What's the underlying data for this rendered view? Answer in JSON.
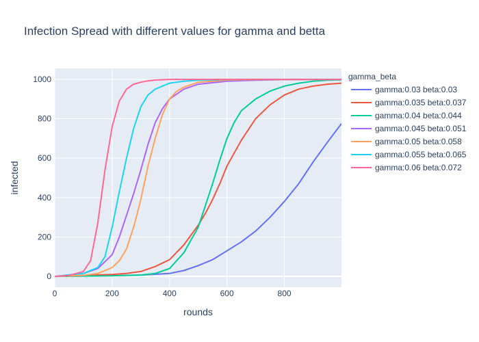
{
  "chart_data": {
    "type": "line",
    "title": "Infection Spread with different values for gamma and betta",
    "xlabel": "rounds",
    "ylabel": "infected",
    "xlim": [
      0,
      999
    ],
    "ylim": [
      -55,
      1055
    ],
    "xticks": [
      0,
      200,
      400,
      600,
      800
    ],
    "yticks": [
      0,
      200,
      400,
      600,
      800,
      1000
    ],
    "xtick_labels": [
      "0",
      "200",
      "400",
      "600",
      "800"
    ],
    "ytick_labels": [
      "0",
      "200",
      "400",
      "600",
      "800",
      "1000"
    ],
    "grid": true,
    "legend_title": "gamma_beta",
    "legend_position": "right",
    "series": [
      {
        "name": "gamma:0.03 beta:0.03",
        "color": "#636efa",
        "x": [
          0,
          100,
          200,
          300,
          400,
          450,
          500,
          550,
          600,
          650,
          700,
          750,
          800,
          850,
          900,
          950,
          999
        ],
        "y": [
          0,
          2,
          4,
          7,
          15,
          30,
          55,
          85,
          130,
          175,
          230,
          300,
          380,
          470,
          580,
          680,
          775
        ]
      },
      {
        "name": "gamma:0.035 beta:0.037",
        "color": "#ef553b",
        "x": [
          0,
          100,
          200,
          250,
          300,
          350,
          400,
          450,
          500,
          525,
          550,
          575,
          600,
          650,
          700,
          750,
          800,
          850,
          900,
          950,
          999
        ],
        "y": [
          0,
          5,
          10,
          15,
          25,
          50,
          85,
          160,
          260,
          320,
          390,
          470,
          560,
          690,
          800,
          870,
          920,
          950,
          965,
          975,
          980
        ]
      },
      {
        "name": "gamma:0.04 beta:0.044",
        "color": "#00cc96",
        "x": [
          0,
          100,
          200,
          300,
          350,
          400,
          450,
          500,
          525,
          550,
          575,
          600,
          625,
          650,
          700,
          750,
          800,
          850,
          900,
          950,
          999
        ],
        "y": [
          0,
          2,
          3,
          7,
          15,
          40,
          120,
          250,
          360,
          470,
          590,
          700,
          780,
          840,
          900,
          940,
          965,
          980,
          990,
          995,
          997
        ]
      },
      {
        "name": "gamma:0.045 beta:0.051",
        "color": "#ab63fa",
        "x": [
          0,
          100,
          150,
          200,
          225,
          250,
          275,
          300,
          325,
          350,
          375,
          400,
          450,
          500,
          600,
          700,
          800,
          999
        ],
        "y": [
          0,
          15,
          40,
          110,
          200,
          310,
          420,
          540,
          670,
          780,
          850,
          900,
          950,
          975,
          990,
          995,
          998,
          999
        ]
      },
      {
        "name": "gamma:0.05 beta:0.058",
        "color": "#ffa15a",
        "x": [
          0,
          100,
          150,
          200,
          225,
          250,
          275,
          300,
          325,
          350,
          375,
          400,
          425,
          450,
          500,
          600,
          700,
          999
        ],
        "y": [
          0,
          5,
          15,
          45,
          80,
          140,
          250,
          390,
          560,
          700,
          820,
          900,
          940,
          960,
          985,
          995,
          998,
          999
        ]
      },
      {
        "name": "gamma:0.055 beta:0.065",
        "color": "#19d3f3",
        "x": [
          0,
          100,
          150,
          175,
          200,
          225,
          250,
          275,
          300,
          325,
          350,
          400,
          450,
          500,
          600,
          700,
          999
        ],
        "y": [
          0,
          15,
          45,
          100,
          250,
          430,
          600,
          750,
          860,
          920,
          950,
          980,
          990,
          995,
          998,
          999,
          999
        ]
      },
      {
        "name": "gamma:0.06 beta:0.072",
        "color": "#ff6692",
        "x": [
          0,
          50,
          100,
          125,
          150,
          175,
          200,
          225,
          250,
          275,
          300,
          325,
          350,
          400,
          450,
          500,
          600,
          999
        ],
        "y": [
          0,
          5,
          25,
          80,
          270,
          540,
          760,
          890,
          950,
          975,
          985,
          992,
          996,
          999,
          999,
          999,
          999,
          999
        ]
      }
    ]
  }
}
